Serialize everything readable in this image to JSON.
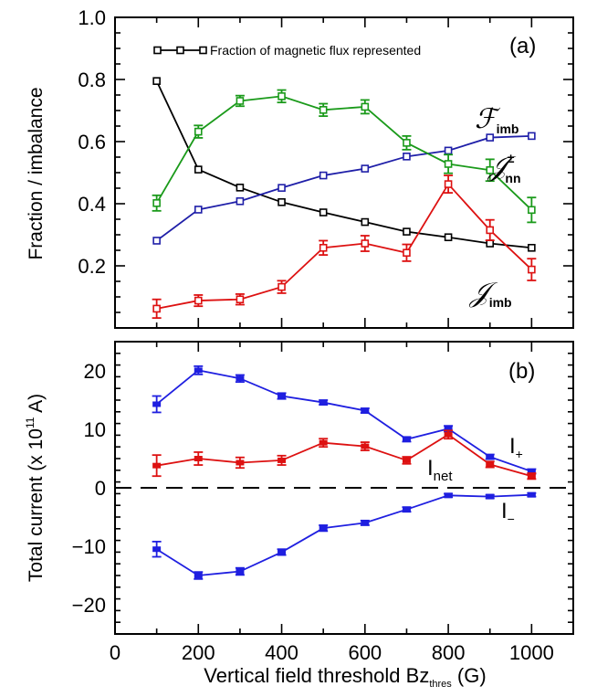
{
  "chart_data": [
    {
      "panel": "(a)",
      "type": "line",
      "ylabel": "Fraction / imbalance",
      "xlim": [
        0,
        1100
      ],
      "ylim": [
        0.0,
        1.0
      ],
      "yticks": [
        "0.2",
        "0.4",
        "0.6",
        "0.8",
        "1.0"
      ],
      "x": [
        100,
        200,
        300,
        400,
        500,
        600,
        700,
        800,
        900,
        1000
      ],
      "legend": "Fraction of magnetic flux represented",
      "series": [
        {
          "name": "Fraction of magnetic flux represented",
          "color": "#000000",
          "values": [
            0.795,
            0.51,
            0.452,
            0.405,
            0.372,
            0.341,
            0.31,
            0.292,
            0.272,
            0.258
          ],
          "errors": [
            0,
            0,
            0,
            0,
            0,
            0,
            0,
            0,
            0,
            0
          ]
        },
        {
          "name": "F_imb",
          "label_main": "ℱ",
          "label_sub": "imb",
          "label_sup": "",
          "color": "#1f1fa8",
          "values": [
            0.281,
            0.381,
            0.408,
            0.451,
            0.491,
            0.513,
            0.552,
            0.571,
            0.613,
            0.618
          ],
          "errors": [
            0,
            0,
            0,
            0,
            0,
            0,
            0,
            0,
            0,
            0
          ]
        },
        {
          "name": "J_nn",
          "label_main": "𝒥",
          "label_sub": "nn",
          "label_sup": "±",
          "color": "#1a9a1a",
          "values": [
            0.402,
            0.632,
            0.731,
            0.746,
            0.702,
            0.712,
            0.596,
            0.528,
            0.508,
            0.38
          ],
          "errors": [
            0.025,
            0.02,
            0.017,
            0.02,
            0.02,
            0.022,
            0.022,
            0.03,
            0.035,
            0.04
          ]
        },
        {
          "name": "J_imb",
          "label_main": "𝒥",
          "label_sub": "imb",
          "label_sup": "",
          "color": "#dd1111",
          "values": [
            0.062,
            0.088,
            0.092,
            0.132,
            0.258,
            0.272,
            0.242,
            0.463,
            0.315,
            0.188
          ],
          "errors": [
            0.03,
            0.018,
            0.017,
            0.02,
            0.023,
            0.025,
            0.027,
            0.028,
            0.033,
            0.035
          ]
        }
      ]
    },
    {
      "panel": "(b)",
      "type": "line",
      "ylabel_prefix": "Total current (x 10",
      "ylabel_exp": "11",
      "ylabel_suffix": " A)",
      "xlabel_prefix": "Vertical field threshold Bz",
      "xlabel_sub": "thres",
      "xlabel_suffix": " (G)",
      "xlim": [
        0,
        1100
      ],
      "ylim": [
        -25,
        25
      ],
      "xticks": [
        "0",
        "200",
        "400",
        "600",
        "800",
        "1000"
      ],
      "yticks": [
        "−20",
        "−10",
        "0",
        "10",
        "20"
      ],
      "x": [
        100,
        200,
        300,
        400,
        500,
        600,
        700,
        800,
        900,
        1000
      ],
      "zero_line": "dashed",
      "series": [
        {
          "name": "I+",
          "label_main": "I",
          "label_sub": "+",
          "color": "#1f1fe0",
          "values": [
            14.3,
            20.1,
            18.7,
            15.7,
            14.6,
            13.2,
            8.3,
            10.1,
            5.3,
            2.8
          ],
          "errors": [
            1.4,
            0.7,
            0.6,
            0.5,
            0.4,
            0.4,
            0.4,
            0.5,
            0.4,
            0.4
          ]
        },
        {
          "name": "Inet",
          "label_main": "I",
          "label_sub": "net",
          "color": "#dd1111",
          "values": [
            3.8,
            5.0,
            4.3,
            4.7,
            7.7,
            7.1,
            4.7,
            9.1,
            4.0,
            2.0
          ],
          "errors": [
            1.8,
            1.1,
            0.9,
            0.8,
            0.7,
            0.7,
            0.6,
            0.7,
            0.5,
            0.5
          ]
        },
        {
          "name": "I−",
          "label_main": "I",
          "label_sub": "−",
          "color": "#1f1fe0",
          "values": [
            -10.5,
            -15.0,
            -14.3,
            -11.0,
            -6.9,
            -6.0,
            -3.7,
            -1.3,
            -1.5,
            -1.2
          ],
          "errors": [
            1.3,
            0.6,
            0.6,
            0.5,
            0.5,
            0.4,
            0.4,
            0.3,
            0.3,
            0.3
          ]
        }
      ]
    }
  ]
}
